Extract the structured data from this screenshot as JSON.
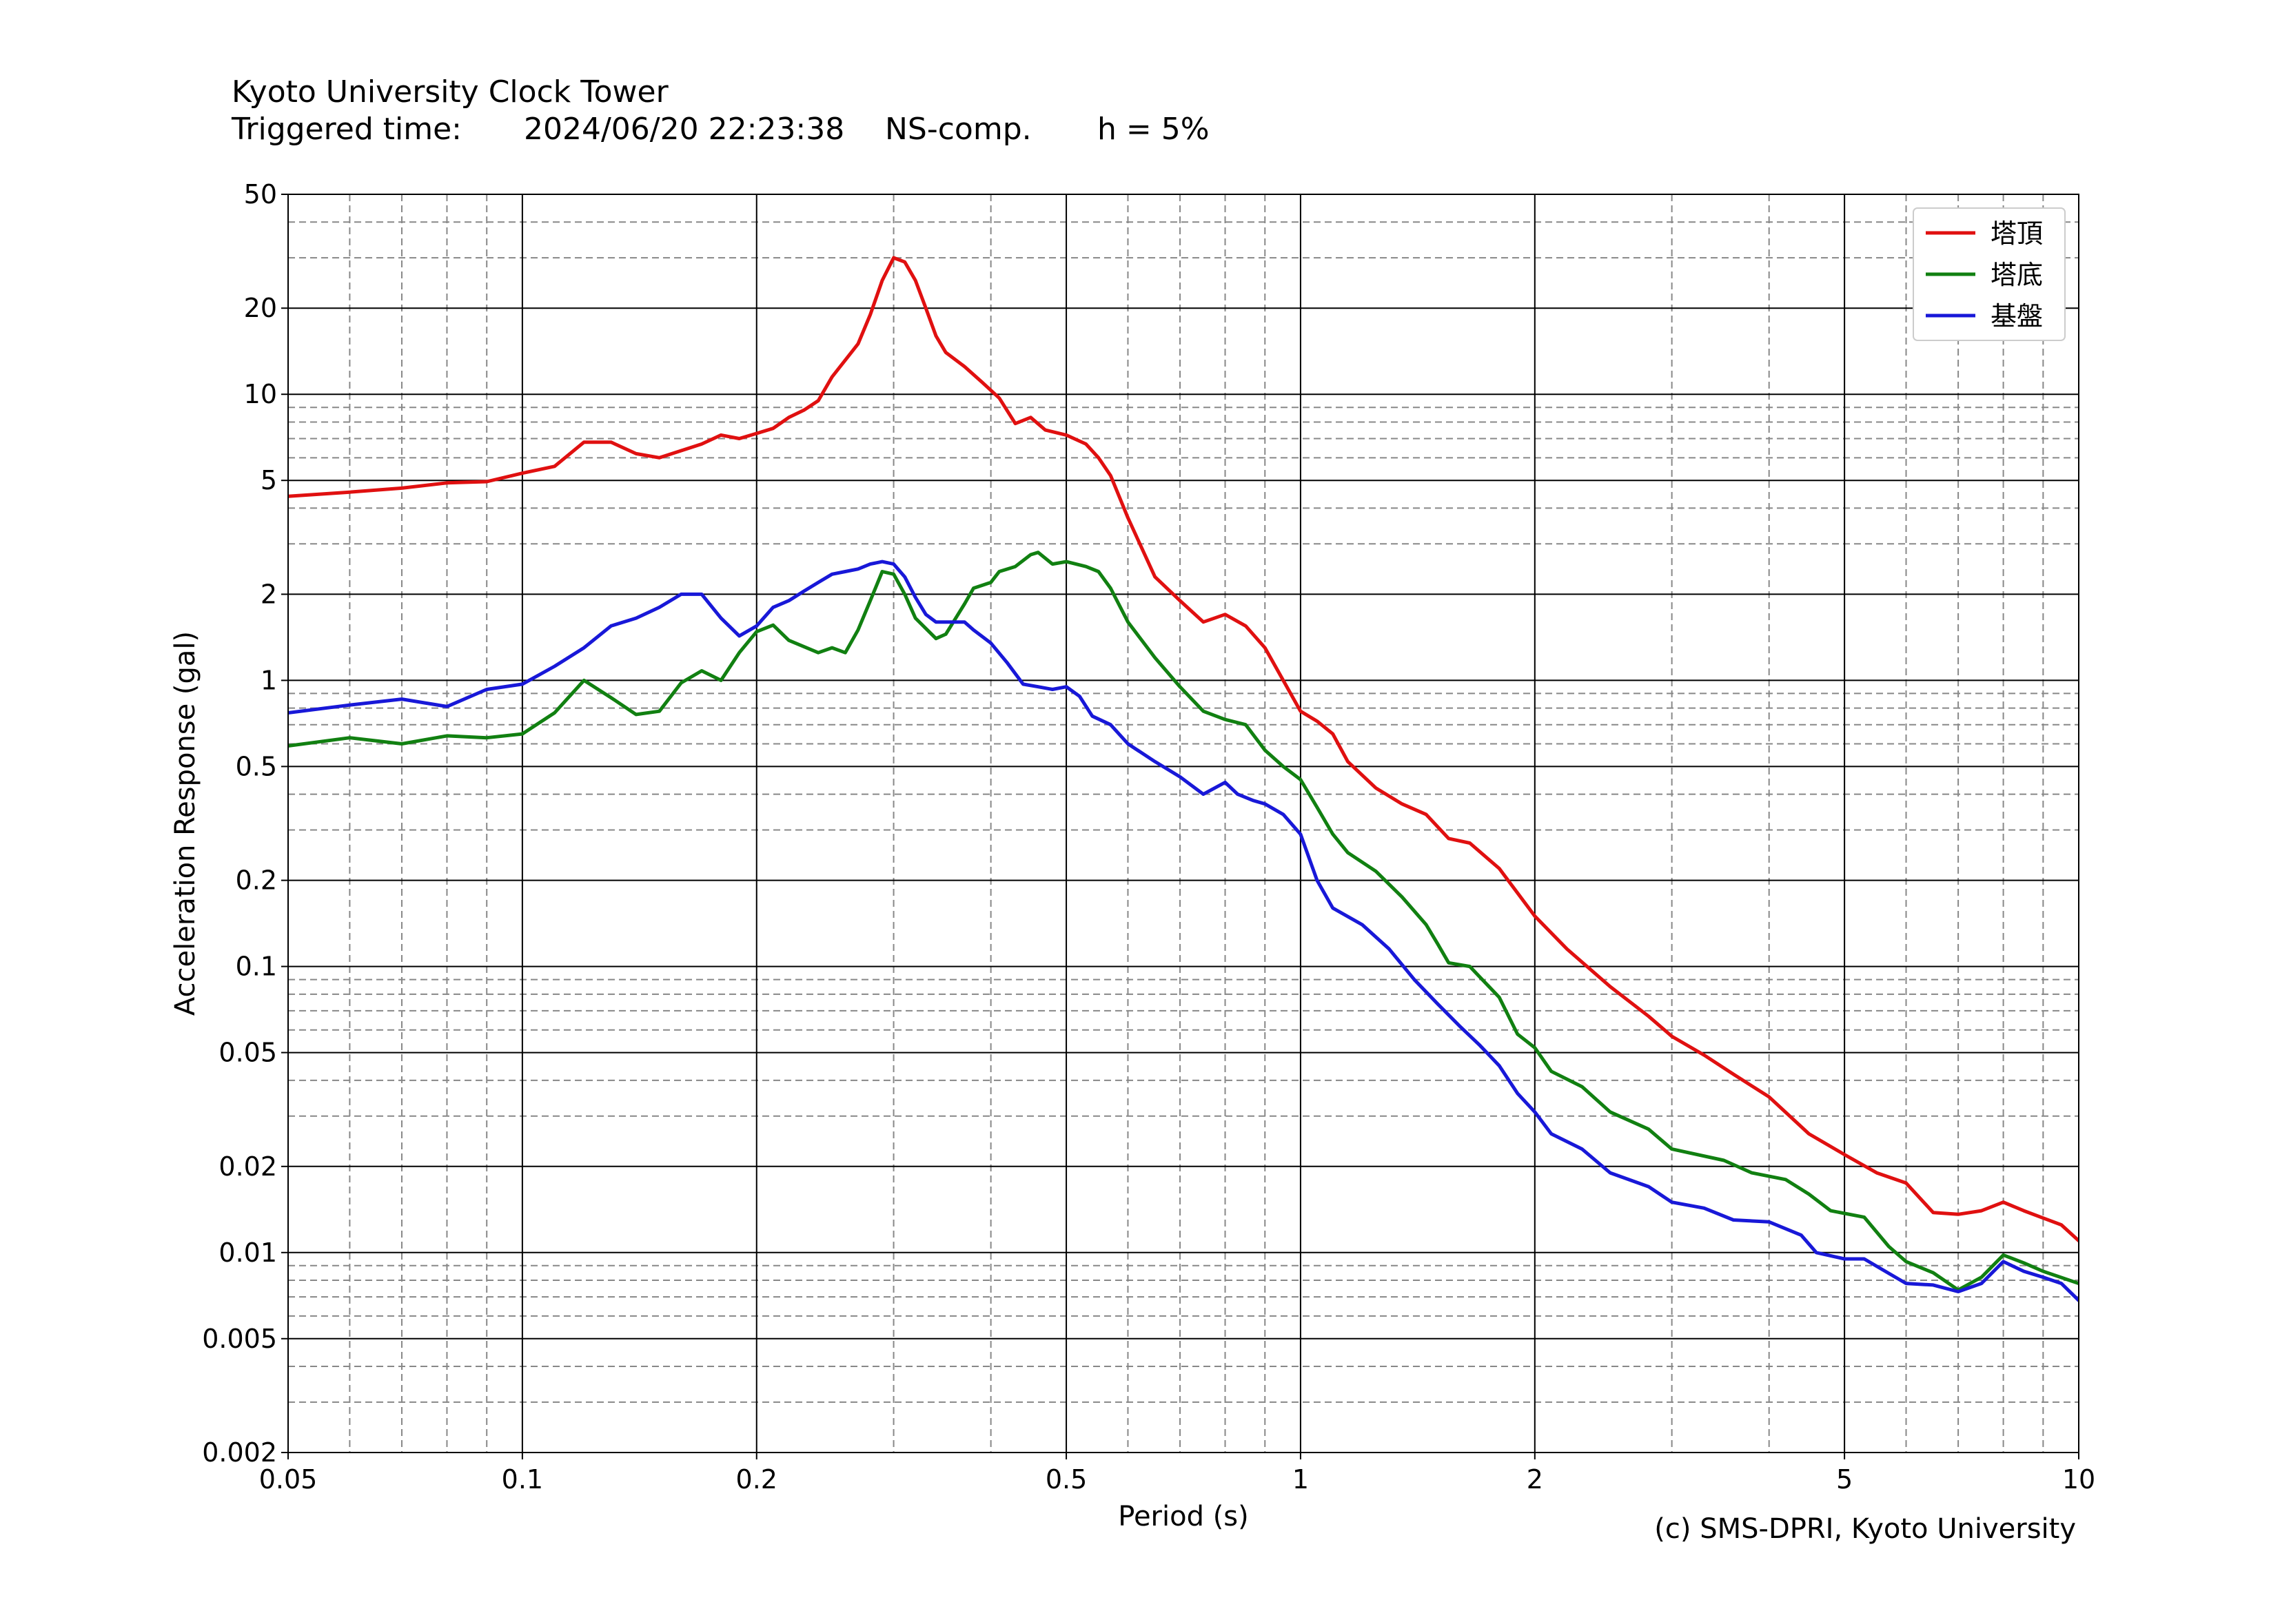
{
  "header": {
    "title": "Kyoto University Clock Tower",
    "triggered_label": "Triggered time:",
    "triggered_value": "2024/06/20 22:23:38",
    "component": "NS-comp.",
    "damping": "h = 5%"
  },
  "copyright": "(c) SMS-DPRI, Kyoto University",
  "chart_data": {
    "type": "line",
    "title": "Kyoto University Clock Tower",
    "xlabel": "Period (s)",
    "ylabel": "Acceleration Response (gal)",
    "xscale": "log",
    "yscale": "log",
    "xlim": [
      0.05,
      10
    ],
    "ylim": [
      0.002,
      50
    ],
    "grid": true,
    "legend_position": "top-right",
    "x_ticks": [
      "0.05",
      "0.1",
      "0.2",
      "0.5",
      "1",
      "2",
      "5",
      "10"
    ],
    "y_ticks": [
      "0.002",
      "0.005",
      "0.01",
      "0.02",
      "0.05",
      "0.1",
      "0.2",
      "0.5",
      "1",
      "2",
      "5",
      "10",
      "20",
      "50"
    ],
    "series": [
      {
        "name": "塔頂",
        "color": "#e01010",
        "points": [
          [
            0.05,
            4.4
          ],
          [
            0.06,
            4.55
          ],
          [
            0.07,
            4.7
          ],
          [
            0.08,
            4.9
          ],
          [
            0.09,
            4.95
          ],
          [
            0.1,
            5.3
          ],
          [
            0.11,
            5.6
          ],
          [
            0.12,
            6.8
          ],
          [
            0.13,
            6.8
          ],
          [
            0.14,
            6.2
          ],
          [
            0.15,
            6.0
          ],
          [
            0.17,
            6.7
          ],
          [
            0.18,
            7.2
          ],
          [
            0.19,
            7.0
          ],
          [
            0.2,
            7.3
          ],
          [
            0.21,
            7.6
          ],
          [
            0.22,
            8.3
          ],
          [
            0.23,
            8.8
          ],
          [
            0.24,
            9.5
          ],
          [
            0.25,
            11.5
          ],
          [
            0.27,
            15
          ],
          [
            0.28,
            19
          ],
          [
            0.29,
            25
          ],
          [
            0.3,
            30
          ],
          [
            0.31,
            29
          ],
          [
            0.32,
            25
          ],
          [
            0.33,
            20
          ],
          [
            0.34,
            16
          ],
          [
            0.35,
            14
          ],
          [
            0.37,
            12.5
          ],
          [
            0.39,
            11
          ],
          [
            0.41,
            9.7
          ],
          [
            0.43,
            7.9
          ],
          [
            0.45,
            8.3
          ],
          [
            0.47,
            7.5
          ],
          [
            0.5,
            7.2
          ],
          [
            0.53,
            6.7
          ],
          [
            0.55,
            6.0
          ],
          [
            0.57,
            5.2
          ],
          [
            0.6,
            3.7
          ],
          [
            0.65,
            2.3
          ],
          [
            0.7,
            1.9
          ],
          [
            0.75,
            1.6
          ],
          [
            0.8,
            1.7
          ],
          [
            0.85,
            1.55
          ],
          [
            0.9,
            1.3
          ],
          [
            0.95,
            1.0
          ],
          [
            1.0,
            0.78
          ],
          [
            1.05,
            0.72
          ],
          [
            1.1,
            0.65
          ],
          [
            1.15,
            0.52
          ],
          [
            1.25,
            0.42
          ],
          [
            1.35,
            0.37
          ],
          [
            1.45,
            0.34
          ],
          [
            1.55,
            0.28
          ],
          [
            1.65,
            0.27
          ],
          [
            1.8,
            0.22
          ],
          [
            2.0,
            0.15
          ],
          [
            2.2,
            0.115
          ],
          [
            2.5,
            0.085
          ],
          [
            2.8,
            0.067
          ],
          [
            3.0,
            0.057
          ],
          [
            3.3,
            0.049
          ],
          [
            3.6,
            0.042
          ],
          [
            4.0,
            0.035
          ],
          [
            4.5,
            0.026
          ],
          [
            5.0,
            0.022
          ],
          [
            5.5,
            0.019
          ],
          [
            6.0,
            0.0175
          ],
          [
            6.5,
            0.0138
          ],
          [
            7.0,
            0.0136
          ],
          [
            7.5,
            0.014
          ],
          [
            8.0,
            0.015
          ],
          [
            8.5,
            0.014
          ],
          [
            9.0,
            0.0132
          ],
          [
            9.5,
            0.0125
          ],
          [
            10.0,
            0.011
          ]
        ]
      },
      {
        "name": "塔底",
        "color": "#118011",
        "points": [
          [
            0.05,
            0.59
          ],
          [
            0.06,
            0.63
          ],
          [
            0.07,
            0.6
          ],
          [
            0.08,
            0.64
          ],
          [
            0.09,
            0.63
          ],
          [
            0.1,
            0.65
          ],
          [
            0.11,
            0.77
          ],
          [
            0.12,
            1.0
          ],
          [
            0.13,
            0.87
          ],
          [
            0.14,
            0.76
          ],
          [
            0.15,
            0.78
          ],
          [
            0.16,
            0.98
          ],
          [
            0.17,
            1.08
          ],
          [
            0.18,
            1.0
          ],
          [
            0.19,
            1.25
          ],
          [
            0.2,
            1.48
          ],
          [
            0.21,
            1.56
          ],
          [
            0.22,
            1.38
          ],
          [
            0.24,
            1.25
          ],
          [
            0.25,
            1.3
          ],
          [
            0.26,
            1.25
          ],
          [
            0.27,
            1.5
          ],
          [
            0.28,
            1.9
          ],
          [
            0.29,
            2.4
          ],
          [
            0.3,
            2.35
          ],
          [
            0.31,
            2.0
          ],
          [
            0.32,
            1.65
          ],
          [
            0.34,
            1.4
          ],
          [
            0.35,
            1.45
          ],
          [
            0.37,
            1.85
          ],
          [
            0.38,
            2.1
          ],
          [
            0.4,
            2.2
          ],
          [
            0.41,
            2.4
          ],
          [
            0.43,
            2.5
          ],
          [
            0.45,
            2.75
          ],
          [
            0.46,
            2.8
          ],
          [
            0.48,
            2.55
          ],
          [
            0.5,
            2.6
          ],
          [
            0.53,
            2.5
          ],
          [
            0.55,
            2.4
          ],
          [
            0.57,
            2.1
          ],
          [
            0.6,
            1.6
          ],
          [
            0.65,
            1.2
          ],
          [
            0.7,
            0.95
          ],
          [
            0.75,
            0.78
          ],
          [
            0.8,
            0.73
          ],
          [
            0.85,
            0.7
          ],
          [
            0.9,
            0.57
          ],
          [
            0.95,
            0.5
          ],
          [
            1.0,
            0.45
          ],
          [
            1.05,
            0.36
          ],
          [
            1.1,
            0.29
          ],
          [
            1.15,
            0.25
          ],
          [
            1.25,
            0.215
          ],
          [
            1.35,
            0.175
          ],
          [
            1.45,
            0.14
          ],
          [
            1.5,
            0.12
          ],
          [
            1.55,
            0.103
          ],
          [
            1.65,
            0.1
          ],
          [
            1.8,
            0.078
          ],
          [
            1.9,
            0.058
          ],
          [
            2.0,
            0.052
          ],
          [
            2.1,
            0.043
          ],
          [
            2.3,
            0.038
          ],
          [
            2.5,
            0.031
          ],
          [
            2.8,
            0.027
          ],
          [
            3.0,
            0.023
          ],
          [
            3.5,
            0.021
          ],
          [
            3.8,
            0.019
          ],
          [
            4.2,
            0.018
          ],
          [
            4.5,
            0.016
          ],
          [
            4.8,
            0.014
          ],
          [
            5.3,
            0.0133
          ],
          [
            5.7,
            0.0105
          ],
          [
            6.0,
            0.0093
          ],
          [
            6.5,
            0.0085
          ],
          [
            7.0,
            0.0074
          ],
          [
            7.5,
            0.0082
          ],
          [
            8.0,
            0.0098
          ],
          [
            8.5,
            0.0092
          ],
          [
            9.0,
            0.0086
          ],
          [
            10.0,
            0.0078
          ]
        ]
      },
      {
        "name": "基盤",
        "color": "#1818d8",
        "points": [
          [
            0.05,
            0.77
          ],
          [
            0.06,
            0.82
          ],
          [
            0.07,
            0.86
          ],
          [
            0.08,
            0.81
          ],
          [
            0.09,
            0.93
          ],
          [
            0.1,
            0.97
          ],
          [
            0.11,
            1.12
          ],
          [
            0.12,
            1.3
          ],
          [
            0.13,
            1.55
          ],
          [
            0.14,
            1.65
          ],
          [
            0.15,
            1.8
          ],
          [
            0.16,
            2.0
          ],
          [
            0.17,
            2.0
          ],
          [
            0.18,
            1.65
          ],
          [
            0.19,
            1.43
          ],
          [
            0.2,
            1.55
          ],
          [
            0.21,
            1.8
          ],
          [
            0.22,
            1.9
          ],
          [
            0.23,
            2.05
          ],
          [
            0.24,
            2.2
          ],
          [
            0.25,
            2.35
          ],
          [
            0.26,
            2.4
          ],
          [
            0.27,
            2.45
          ],
          [
            0.28,
            2.55
          ],
          [
            0.29,
            2.6
          ],
          [
            0.3,
            2.55
          ],
          [
            0.31,
            2.3
          ],
          [
            0.32,
            1.95
          ],
          [
            0.33,
            1.7
          ],
          [
            0.34,
            1.6
          ],
          [
            0.35,
            1.6
          ],
          [
            0.37,
            1.6
          ],
          [
            0.38,
            1.5
          ],
          [
            0.4,
            1.35
          ],
          [
            0.42,
            1.15
          ],
          [
            0.44,
            0.97
          ],
          [
            0.46,
            0.95
          ],
          [
            0.48,
            0.93
          ],
          [
            0.5,
            0.95
          ],
          [
            0.52,
            0.88
          ],
          [
            0.54,
            0.75
          ],
          [
            0.57,
            0.7
          ],
          [
            0.6,
            0.6
          ],
          [
            0.65,
            0.52
          ],
          [
            0.7,
            0.46
          ],
          [
            0.75,
            0.4
          ],
          [
            0.8,
            0.44
          ],
          [
            0.83,
            0.4
          ],
          [
            0.87,
            0.38
          ],
          [
            0.9,
            0.37
          ],
          [
            0.95,
            0.34
          ],
          [
            1.0,
            0.29
          ],
          [
            1.05,
            0.2
          ],
          [
            1.1,
            0.16
          ],
          [
            1.2,
            0.14
          ],
          [
            1.3,
            0.115
          ],
          [
            1.4,
            0.09
          ],
          [
            1.5,
            0.074
          ],
          [
            1.6,
            0.062
          ],
          [
            1.7,
            0.053
          ],
          [
            1.8,
            0.045
          ],
          [
            1.9,
            0.036
          ],
          [
            2.0,
            0.031
          ],
          [
            2.1,
            0.026
          ],
          [
            2.3,
            0.023
          ],
          [
            2.5,
            0.019
          ],
          [
            2.8,
            0.017
          ],
          [
            3.0,
            0.015
          ],
          [
            3.3,
            0.0143
          ],
          [
            3.6,
            0.013
          ],
          [
            4.0,
            0.0128
          ],
          [
            4.4,
            0.0115
          ],
          [
            4.6,
            0.01
          ],
          [
            5.0,
            0.0095
          ],
          [
            5.3,
            0.0095
          ],
          [
            5.6,
            0.0087
          ],
          [
            6.0,
            0.0078
          ],
          [
            6.5,
            0.0077
          ],
          [
            7.0,
            0.0073
          ],
          [
            7.5,
            0.0078
          ],
          [
            8.0,
            0.0093
          ],
          [
            8.5,
            0.0086
          ],
          [
            9.0,
            0.0082
          ],
          [
            9.5,
            0.0078
          ],
          [
            10.0,
            0.0068
          ]
        ]
      }
    ]
  }
}
